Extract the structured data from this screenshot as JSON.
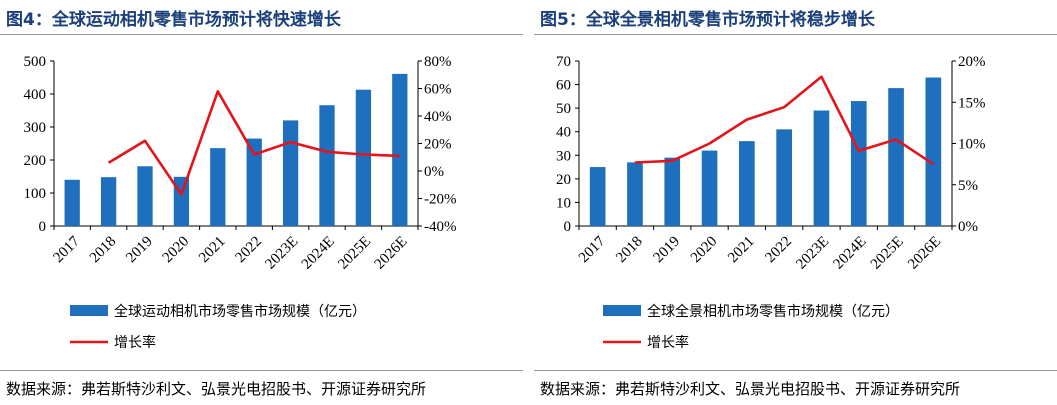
{
  "colors": {
    "bar": "#1f6fbf",
    "line": "#e3141b",
    "title": "#1a3f7a"
  },
  "panels": [
    {
      "title": "图4：全球运动相机零售市场预计将快速增长",
      "source": "数据来源：弗若斯特沙利文、弘景光电招股书、开源证券研究所",
      "legend": {
        "bar": "全球运动相机市场零售市场规模（亿元）",
        "line": "增长率"
      },
      "chart_data": {
        "type": "bar",
        "categories": [
          "2017",
          "2018",
          "2019",
          "2020",
          "2021",
          "2022",
          "2023E",
          "2024E",
          "2025E",
          "2026E"
        ],
        "series": [
          {
            "name": "全球运动相机市场零售市场规模（亿元）",
            "type": "bar",
            "axis": "left",
            "values": [
              140,
              148,
              181,
              149,
              236,
              265,
              320,
              366,
              413,
              461
            ]
          },
          {
            "name": "增长率",
            "type": "line",
            "axis": "right",
            "values": [
              null,
              6,
              22,
              -17,
              58,
              12,
              21,
              14,
              12,
              11
            ]
          }
        ],
        "y_left": {
          "min": 0,
          "max": 500,
          "step": 100,
          "ticks": [
            "0",
            "100",
            "200",
            "300",
            "400",
            "500"
          ]
        },
        "y_right": {
          "min": -40,
          "max": 80,
          "step": 20,
          "ticks": [
            "-40%",
            "-20%",
            "0%",
            "20%",
            "40%",
            "60%",
            "80%"
          ]
        },
        "grid": false,
        "legend_position": "bottom-left"
      }
    },
    {
      "title": "图5：全球全景相机零售市场预计将稳步增长",
      "source": "数据来源：弗若斯特沙利文、弘景光电招股书、开源证券研究所",
      "legend": {
        "bar": "全球全景相机市场零售市场规模（亿元）",
        "line": "增长率"
      },
      "chart_data": {
        "type": "bar",
        "categories": [
          "2017",
          "2018",
          "2019",
          "2020",
          "2021",
          "2022",
          "2023E",
          "2024E",
          "2025E",
          "2026E"
        ],
        "series": [
          {
            "name": "全球全景相机市场零售市场规模（亿元）",
            "type": "bar",
            "axis": "left",
            "values": [
              25,
              27,
              29,
              32,
              36,
              41,
              49,
              53,
              58.5,
              63
            ]
          },
          {
            "name": "增长率",
            "type": "line",
            "axis": "right",
            "values": [
              null,
              7.7,
              7.9,
              10,
              12.9,
              14.4,
              18.1,
              9.1,
              10.5,
              7.5
            ]
          }
        ],
        "y_left": {
          "min": 0,
          "max": 70,
          "step": 10,
          "ticks": [
            "0",
            "10",
            "20",
            "30",
            "40",
            "50",
            "60",
            "70"
          ]
        },
        "y_right": {
          "min": 0,
          "max": 20,
          "step": 5,
          "ticks": [
            "0%",
            "5%",
            "10%",
            "15%",
            "20%"
          ]
        },
        "grid": false,
        "legend_position": "bottom-left"
      }
    }
  ]
}
